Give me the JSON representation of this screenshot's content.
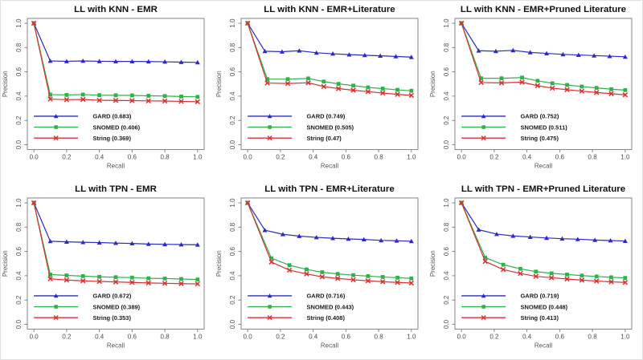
{
  "figure": {
    "background": "#ffffff",
    "axis_color": "#777777",
    "tick_label_color": "#4d4d4d",
    "axis_title_color": "#555555",
    "title_color": "#111111",
    "legend_text_color": "#1a1a1a"
  },
  "chart_data": [
    {
      "type": "line",
      "title": "LL with KNN - EMR",
      "xlabel": "Recall",
      "ylabel": "Precision",
      "xlim": [
        0,
        1
      ],
      "ylim": [
        0,
        1
      ],
      "xticks": [
        "0.0",
        "0.2",
        "0.4",
        "0.6",
        "0.8",
        "1.0"
      ],
      "yticks": [
        "0.0",
        "0.2",
        "0.4",
        "0.6",
        "0.8",
        "1.0"
      ],
      "grid": false,
      "legend_position": "bottom-left",
      "series": [
        {
          "name": "GARD (0.683)",
          "color": "#2b2bc4",
          "marker": "triangle",
          "points": [
            [
              0,
              1.0
            ],
            [
              0.1,
              0.69
            ],
            [
              0.2,
              0.687
            ],
            [
              0.3,
              0.69
            ],
            [
              0.4,
              0.687
            ],
            [
              0.5,
              0.686
            ],
            [
              0.6,
              0.686
            ],
            [
              0.7,
              0.685
            ],
            [
              0.8,
              0.683
            ],
            [
              0.9,
              0.68
            ],
            [
              1.0,
              0.678
            ]
          ]
        },
        {
          "name": "SNOMED (0.406)",
          "color": "#2eb34a",
          "marker": "square",
          "points": [
            [
              0,
              1.0
            ],
            [
              0.1,
              0.413
            ],
            [
              0.2,
              0.41
            ],
            [
              0.3,
              0.413
            ],
            [
              0.4,
              0.408
            ],
            [
              0.5,
              0.407
            ],
            [
              0.6,
              0.406
            ],
            [
              0.7,
              0.403
            ],
            [
              0.8,
              0.401
            ],
            [
              0.9,
              0.397
            ],
            [
              1.0,
              0.394
            ]
          ]
        },
        {
          "name": "String (0.369)",
          "color": "#d93030",
          "marker": "x",
          "points": [
            [
              0,
              1.0
            ],
            [
              0.1,
              0.376
            ],
            [
              0.2,
              0.371
            ],
            [
              0.3,
              0.373
            ],
            [
              0.4,
              0.366
            ],
            [
              0.5,
              0.365
            ],
            [
              0.6,
              0.363
            ],
            [
              0.7,
              0.361
            ],
            [
              0.8,
              0.36
            ],
            [
              0.9,
              0.357
            ],
            [
              1.0,
              0.354
            ]
          ]
        }
      ]
    },
    {
      "type": "line",
      "title": "LL with KNN - EMR+Literature",
      "xlabel": "Recall",
      "ylabel": "Precision",
      "xlim": [
        0,
        1
      ],
      "ylim": [
        0,
        1
      ],
      "xticks": [
        "0.0",
        "0.2",
        "0.4",
        "0.6",
        "0.8",
        "1.0"
      ],
      "yticks": [
        "0.0",
        "0.2",
        "0.4",
        "0.6",
        "0.8",
        "1.0"
      ],
      "grid": false,
      "legend_position": "bottom-left",
      "series": [
        {
          "name": "GARD (0.749)",
          "color": "#2b2bc4",
          "marker": "triangle",
          "points": [
            [
              0,
              1.0
            ],
            [
              0.105,
              0.77
            ],
            [
              0.21,
              0.766
            ],
            [
              0.315,
              0.774
            ],
            [
              0.42,
              0.757
            ],
            [
              0.52,
              0.749
            ],
            [
              0.62,
              0.742
            ],
            [
              0.715,
              0.737
            ],
            [
              0.81,
              0.732
            ],
            [
              0.905,
              0.727
            ],
            [
              1.0,
              0.721
            ]
          ]
        },
        {
          "name": "SNOMED (0.505)",
          "color": "#2eb34a",
          "marker": "square",
          "points": [
            [
              0,
              1.0
            ],
            [
              0.12,
              0.54
            ],
            [
              0.245,
              0.54
            ],
            [
              0.37,
              0.546
            ],
            [
              0.465,
              0.52
            ],
            [
              0.555,
              0.501
            ],
            [
              0.645,
              0.487
            ],
            [
              0.735,
              0.472
            ],
            [
              0.825,
              0.462
            ],
            [
              0.915,
              0.452
            ],
            [
              1.0,
              0.444
            ]
          ]
        },
        {
          "name": "String (0.47)",
          "color": "#d93030",
          "marker": "x",
          "points": [
            [
              0,
              1.0
            ],
            [
              0.12,
              0.508
            ],
            [
              0.245,
              0.504
            ],
            [
              0.37,
              0.51
            ],
            [
              0.465,
              0.479
            ],
            [
              0.555,
              0.462
            ],
            [
              0.645,
              0.449
            ],
            [
              0.735,
              0.437
            ],
            [
              0.825,
              0.426
            ],
            [
              0.915,
              0.415
            ],
            [
              1.0,
              0.406
            ]
          ]
        }
      ]
    },
    {
      "type": "line",
      "title": "LL with KNN - EMR+Pruned Literature",
      "xlabel": "Recall",
      "ylabel": "Precision",
      "xlim": [
        0,
        1
      ],
      "ylim": [
        0,
        1
      ],
      "xticks": [
        "0.0",
        "0.2",
        "0.4",
        "0.6",
        "0.8",
        "1.0"
      ],
      "yticks": [
        "0.0",
        "0.2",
        "0.4",
        "0.6",
        "0.8",
        "1.0"
      ],
      "grid": false,
      "legend_position": "bottom-left",
      "series": [
        {
          "name": "GARD (0.752)",
          "color": "#2b2bc4",
          "marker": "triangle",
          "points": [
            [
              0,
              1.0
            ],
            [
              0.105,
              0.774
            ],
            [
              0.21,
              0.77
            ],
            [
              0.315,
              0.777
            ],
            [
              0.42,
              0.76
            ],
            [
              0.52,
              0.752
            ],
            [
              0.62,
              0.744
            ],
            [
              0.715,
              0.739
            ],
            [
              0.81,
              0.734
            ],
            [
              0.905,
              0.729
            ],
            [
              1.0,
              0.724
            ]
          ]
        },
        {
          "name": "SNOMED (0.511)",
          "color": "#2eb34a",
          "marker": "square",
          "points": [
            [
              0,
              1.0
            ],
            [
              0.12,
              0.547
            ],
            [
              0.245,
              0.547
            ],
            [
              0.37,
              0.553
            ],
            [
              0.465,
              0.526
            ],
            [
              0.555,
              0.506
            ],
            [
              0.645,
              0.492
            ],
            [
              0.735,
              0.479
            ],
            [
              0.825,
              0.468
            ],
            [
              0.915,
              0.457
            ],
            [
              1.0,
              0.45
            ]
          ]
        },
        {
          "name": "String (0.475)",
          "color": "#d93030",
          "marker": "x",
          "points": [
            [
              0,
              1.0
            ],
            [
              0.12,
              0.512
            ],
            [
              0.245,
              0.509
            ],
            [
              0.37,
              0.515
            ],
            [
              0.465,
              0.486
            ],
            [
              0.555,
              0.466
            ],
            [
              0.645,
              0.453
            ],
            [
              0.735,
              0.441
            ],
            [
              0.825,
              0.43
            ],
            [
              0.915,
              0.42
            ],
            [
              1.0,
              0.411
            ]
          ]
        }
      ]
    },
    {
      "type": "line",
      "title": "LL with TPN - EMR",
      "xlabel": "Recall",
      "ylabel": "Precision",
      "xlim": [
        0,
        1
      ],
      "ylim": [
        0,
        1
      ],
      "xticks": [
        "0.0",
        "0.2",
        "0.4",
        "0.6",
        "0.8",
        "1.0"
      ],
      "yticks": [
        "0.0",
        "0.2",
        "0.4",
        "0.6",
        "0.8",
        "1.0"
      ],
      "grid": false,
      "legend_position": "bottom-left",
      "series": [
        {
          "name": "GARD (0.672)",
          "color": "#2b2bc4",
          "marker": "triangle",
          "points": [
            [
              0,
              1.0
            ],
            [
              0.1,
              0.684
            ],
            [
              0.2,
              0.679
            ],
            [
              0.3,
              0.676
            ],
            [
              0.4,
              0.673
            ],
            [
              0.5,
              0.669
            ],
            [
              0.6,
              0.666
            ],
            [
              0.7,
              0.661
            ],
            [
              0.8,
              0.659
            ],
            [
              0.9,
              0.657
            ],
            [
              1.0,
              0.655
            ]
          ]
        },
        {
          "name": "SNOMED (0.389)",
          "color": "#2eb34a",
          "marker": "square",
          "points": [
            [
              0,
              1.0
            ],
            [
              0.1,
              0.41
            ],
            [
              0.2,
              0.403
            ],
            [
              0.3,
              0.397
            ],
            [
              0.4,
              0.391
            ],
            [
              0.5,
              0.388
            ],
            [
              0.6,
              0.385
            ],
            [
              0.7,
              0.379
            ],
            [
              0.8,
              0.377
            ],
            [
              0.9,
              0.373
            ],
            [
              1.0,
              0.369
            ]
          ]
        },
        {
          "name": "String (0.353)",
          "color": "#d93030",
          "marker": "x",
          "points": [
            [
              0,
              1.0
            ],
            [
              0.1,
              0.375
            ],
            [
              0.2,
              0.365
            ],
            [
              0.3,
              0.358
            ],
            [
              0.4,
              0.353
            ],
            [
              0.5,
              0.349
            ],
            [
              0.6,
              0.345
            ],
            [
              0.7,
              0.341
            ],
            [
              0.8,
              0.338
            ],
            [
              0.9,
              0.335
            ],
            [
              1.0,
              0.333
            ]
          ]
        }
      ]
    },
    {
      "type": "line",
      "title": "LL with TPN - EMR+Literature",
      "xlabel": "Recall",
      "ylabel": "Precision",
      "xlim": [
        0,
        1
      ],
      "ylim": [
        0,
        1
      ],
      "xticks": [
        "0.0",
        "0.2",
        "0.4",
        "0.6",
        "0.8",
        "1.0"
      ],
      "yticks": [
        "0.0",
        "0.2",
        "0.4",
        "0.6",
        "0.8",
        "1.0"
      ],
      "grid": false,
      "legend_position": "bottom-left",
      "series": [
        {
          "name": "GARD (0.716)",
          "color": "#2b2bc4",
          "marker": "triangle",
          "points": [
            [
              0,
              1.0
            ],
            [
              0.105,
              0.775
            ],
            [
              0.215,
              0.741
            ],
            [
              0.315,
              0.726
            ],
            [
              0.42,
              0.716
            ],
            [
              0.52,
              0.709
            ],
            [
              0.615,
              0.703
            ],
            [
              0.71,
              0.699
            ],
            [
              0.815,
              0.691
            ],
            [
              0.91,
              0.688
            ],
            [
              1.0,
              0.684
            ]
          ]
        },
        {
          "name": "SNOMED (0.443)",
          "color": "#2eb34a",
          "marker": "square",
          "points": [
            [
              0,
              1.0
            ],
            [
              0.145,
              0.544
            ],
            [
              0.255,
              0.487
            ],
            [
              0.36,
              0.452
            ],
            [
              0.455,
              0.429
            ],
            [
              0.55,
              0.415
            ],
            [
              0.645,
              0.405
            ],
            [
              0.735,
              0.397
            ],
            [
              0.825,
              0.39
            ],
            [
              0.915,
              0.384
            ],
            [
              1.0,
              0.378
            ]
          ]
        },
        {
          "name": "String (0.408)",
          "color": "#d93030",
          "marker": "x",
          "points": [
            [
              0,
              1.0
            ],
            [
              0.145,
              0.513
            ],
            [
              0.255,
              0.446
            ],
            [
              0.36,
              0.415
            ],
            [
              0.455,
              0.391
            ],
            [
              0.55,
              0.378
            ],
            [
              0.645,
              0.367
            ],
            [
              0.735,
              0.358
            ],
            [
              0.825,
              0.351
            ],
            [
              0.915,
              0.345
            ],
            [
              1.0,
              0.34
            ]
          ]
        }
      ]
    },
    {
      "type": "line",
      "title": "LL with TPN - EMR+Pruned Literature",
      "xlabel": "Recall",
      "ylabel": "Precision",
      "xlim": [
        0,
        1
      ],
      "ylim": [
        0,
        1
      ],
      "xticks": [
        "0.0",
        "0.2",
        "0.4",
        "0.6",
        "0.8",
        "1.0"
      ],
      "yticks": [
        "0.0",
        "0.2",
        "0.4",
        "0.6",
        "0.8",
        "1.0"
      ],
      "grid": false,
      "legend_position": "bottom-left",
      "series": [
        {
          "name": "GARD (0.719)",
          "color": "#2b2bc4",
          "marker": "triangle",
          "points": [
            [
              0,
              1.0
            ],
            [
              0.105,
              0.779
            ],
            [
              0.215,
              0.743
            ],
            [
              0.315,
              0.728
            ],
            [
              0.42,
              0.719
            ],
            [
              0.52,
              0.711
            ],
            [
              0.615,
              0.705
            ],
            [
              0.71,
              0.701
            ],
            [
              0.815,
              0.694
            ],
            [
              0.91,
              0.69
            ],
            [
              1.0,
              0.686
            ]
          ]
        },
        {
          "name": "SNOMED (0.448)",
          "color": "#2eb34a",
          "marker": "square",
          "points": [
            [
              0,
              1.0
            ],
            [
              0.145,
              0.549
            ],
            [
              0.255,
              0.491
            ],
            [
              0.36,
              0.457
            ],
            [
              0.455,
              0.434
            ],
            [
              0.55,
              0.42
            ],
            [
              0.645,
              0.41
            ],
            [
              0.735,
              0.401
            ],
            [
              0.825,
              0.394
            ],
            [
              0.915,
              0.387
            ],
            [
              1.0,
              0.382
            ]
          ]
        },
        {
          "name": "String (0.413)",
          "color": "#d93030",
          "marker": "x",
          "points": [
            [
              0,
              1.0
            ],
            [
              0.145,
              0.518
            ],
            [
              0.255,
              0.451
            ],
            [
              0.36,
              0.419
            ],
            [
              0.455,
              0.395
            ],
            [
              0.55,
              0.384
            ],
            [
              0.645,
              0.373
            ],
            [
              0.735,
              0.364
            ],
            [
              0.825,
              0.356
            ],
            [
              0.915,
              0.35
            ],
            [
              1.0,
              0.345
            ]
          ]
        }
      ]
    }
  ]
}
